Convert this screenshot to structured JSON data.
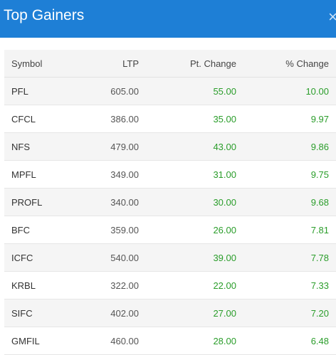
{
  "header": {
    "title": "Top Gainers",
    "close_label": "×"
  },
  "table": {
    "columns": [
      "Symbol",
      "LTP",
      "Pt. Change",
      "% Change"
    ],
    "rows": [
      {
        "symbol": "PFL",
        "ltp": "605.00",
        "pt_change": "55.00",
        "pct_change": "10.00"
      },
      {
        "symbol": "CFCL",
        "ltp": "386.00",
        "pt_change": "35.00",
        "pct_change": "9.97"
      },
      {
        "symbol": "NFS",
        "ltp": "479.00",
        "pt_change": "43.00",
        "pct_change": "9.86"
      },
      {
        "symbol": "MPFL",
        "ltp": "349.00",
        "pt_change": "31.00",
        "pct_change": "9.75"
      },
      {
        "symbol": "PROFL",
        "ltp": "340.00",
        "pt_change": "30.00",
        "pct_change": "9.68"
      },
      {
        "symbol": "BFC",
        "ltp": "359.00",
        "pt_change": "26.00",
        "pct_change": "7.81"
      },
      {
        "symbol": "ICFC",
        "ltp": "540.00",
        "pt_change": "39.00",
        "pct_change": "7.78"
      },
      {
        "symbol": "KRBL",
        "ltp": "322.00",
        "pt_change": "22.00",
        "pct_change": "7.33"
      },
      {
        "symbol": "SIFC",
        "ltp": "402.00",
        "pt_change": "27.00",
        "pct_change": "7.20"
      },
      {
        "symbol": "GMFIL",
        "ltp": "460.00",
        "pt_change": "28.00",
        "pct_change": "6.48"
      }
    ]
  },
  "colors": {
    "header_bg": "#1e7fd6",
    "positive": "#2a9d2a"
  }
}
